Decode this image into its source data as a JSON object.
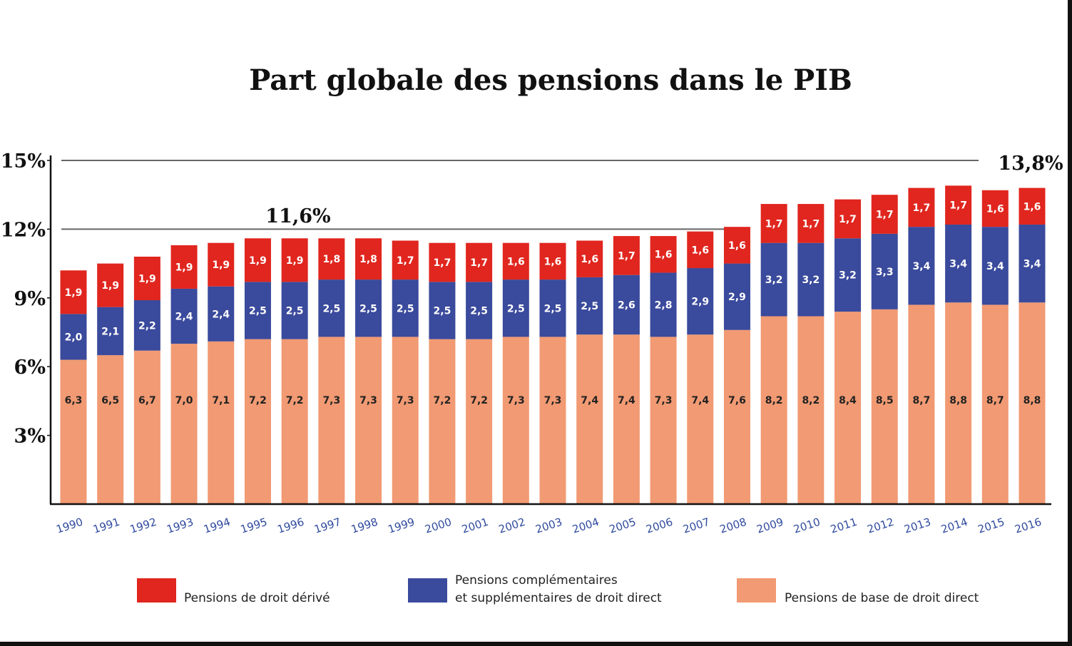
{
  "chart_data": {
    "type": "bar",
    "stacked": true,
    "title": "Part globale des pensions dans le PIB",
    "categories": [
      "1990",
      "1991",
      "1992",
      "1993",
      "1994",
      "1995",
      "1996",
      "1997",
      "1998",
      "1999",
      "2000",
      "2001",
      "2002",
      "2003",
      "2004",
      "2005",
      "2006",
      "2007",
      "2008",
      "2009",
      "2010",
      "2011",
      "2012",
      "2013",
      "2014",
      "2015",
      "2016"
    ],
    "series": [
      {
        "name": "Pensions de base de droit direct",
        "color": "#f19a73",
        "label_color": "#222222",
        "values": [
          6.3,
          6.5,
          6.7,
          7.0,
          7.1,
          7.2,
          7.2,
          7.3,
          7.3,
          7.3,
          7.2,
          7.2,
          7.3,
          7.3,
          7.4,
          7.4,
          7.3,
          7.4,
          7.6,
          8.2,
          8.2,
          8.4,
          8.5,
          8.7,
          8.8,
          8.7,
          8.8
        ],
        "labels": [
          "6,3",
          "6,5",
          "6,7",
          "7,0",
          "7,1",
          "7,2",
          "7,2",
          "7,3",
          "7,3",
          "7,3",
          "7,2",
          "7,2",
          "7,3",
          "7,3",
          "7,4",
          "7,4",
          "7,3",
          "7,4",
          "7,6",
          "8,2",
          "8,2",
          "8,4",
          "8,5",
          "8,7",
          "8,8",
          "8,7",
          "8,8"
        ]
      },
      {
        "name_lines": [
          "Pensions complémentaires",
          "et supplémentaires de droit direct"
        ],
        "color": "#3a4a9c",
        "label_color": "#ffffff",
        "values": [
          2.0,
          2.1,
          2.2,
          2.4,
          2.4,
          2.5,
          2.5,
          2.5,
          2.5,
          2.5,
          2.5,
          2.5,
          2.5,
          2.5,
          2.5,
          2.6,
          2.8,
          2.9,
          2.9,
          3.2,
          3.2,
          3.2,
          3.3,
          3.4,
          3.4,
          3.4,
          3.4
        ],
        "labels": [
          "2,0",
          "2,1",
          "2,2",
          "2,4",
          "2,4",
          "2,5",
          "2,5",
          "2,5",
          "2,5",
          "2,5",
          "2,5",
          "2,5",
          "2,5",
          "2,5",
          "2,5",
          "2,6",
          "2,8",
          "2,9",
          "2,9",
          "3,2",
          "3,2",
          "3,2",
          "3,3",
          "3,4",
          "3,4",
          "3,4",
          "3,4"
        ]
      },
      {
        "name": "Pensions de droit dérivé",
        "color": "#e0261e",
        "label_color": "#ffffff",
        "values": [
          1.9,
          1.9,
          1.9,
          1.9,
          1.9,
          1.9,
          1.9,
          1.8,
          1.8,
          1.7,
          1.7,
          1.7,
          1.6,
          1.6,
          1.6,
          1.7,
          1.6,
          1.6,
          1.6,
          1.7,
          1.7,
          1.7,
          1.7,
          1.7,
          1.7,
          1.6,
          1.6
        ],
        "labels": [
          "1,9",
          "1,9",
          "1,9",
          "1,9",
          "1,9",
          "1,9",
          "1,9",
          "1,8",
          "1,8",
          "1,7",
          "1,7",
          "1,7",
          "1,6",
          "1,6",
          "1,6",
          "1,7",
          "1,6",
          "1,6",
          "1,6",
          "1,7",
          "1,7",
          "1,7",
          "1,7",
          "1,7",
          "1,7",
          "1,6",
          "1,6"
        ]
      }
    ],
    "ylim": [
      0,
      15
    ],
    "yticks": [
      {
        "value": 3,
        "label": "3%"
      },
      {
        "value": 6,
        "label": "6%"
      },
      {
        "value": 9,
        "label": "9%"
      },
      {
        "value": 12,
        "label": "12%"
      },
      {
        "value": 15,
        "label": "15%"
      }
    ],
    "reference_lines": [
      {
        "value": 15,
        "label": "13,8%"
      },
      {
        "value": 12,
        "label": "11,6%"
      }
    ],
    "legend_order": [
      2,
      1,
      0
    ],
    "legend_position": "bottom",
    "grid": false
  }
}
